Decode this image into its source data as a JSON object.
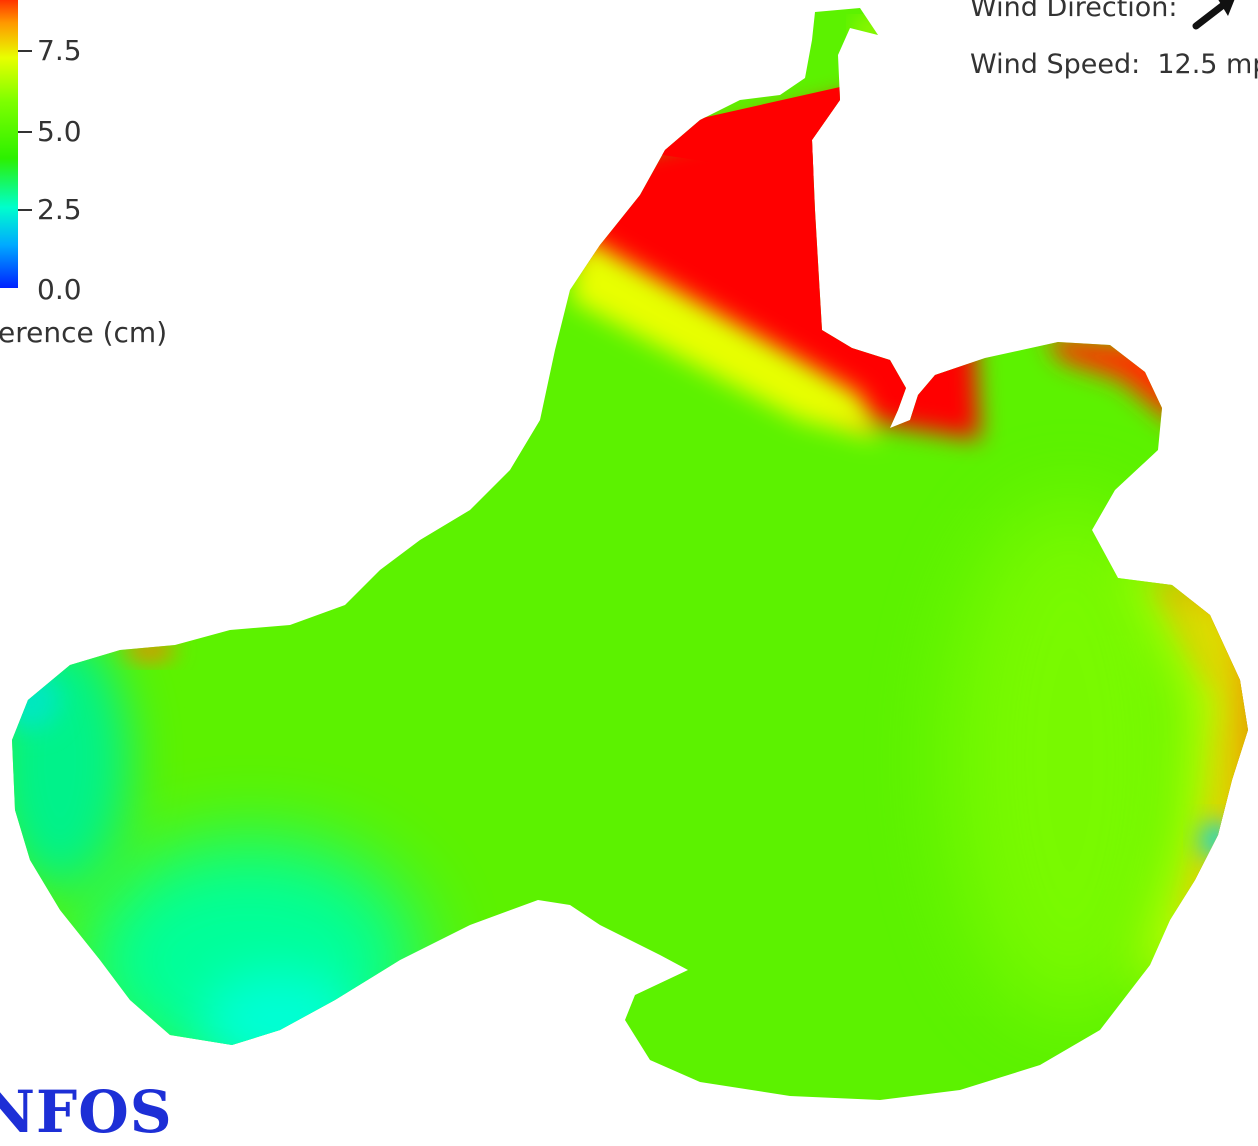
{
  "legend": {
    "title": "erence (cm)",
    "ticks": [
      "7.5",
      "5.0",
      "2.5",
      "0.0"
    ]
  },
  "wind": {
    "direction_label": "Wind Direction:",
    "direction_icon": "arrow-northeast-icon",
    "speed_label": "Wind Speed:",
    "speed_value": "12.5 mp"
  },
  "logo": {
    "text": "NFOS"
  },
  "colors": {
    "low": "#0022ff",
    "mid_low": "#00ffcc",
    "mid": "#2cf000",
    "mid_high": "#e8ff00",
    "high": "#ff0000",
    "logo": "#1d2fd6"
  }
}
